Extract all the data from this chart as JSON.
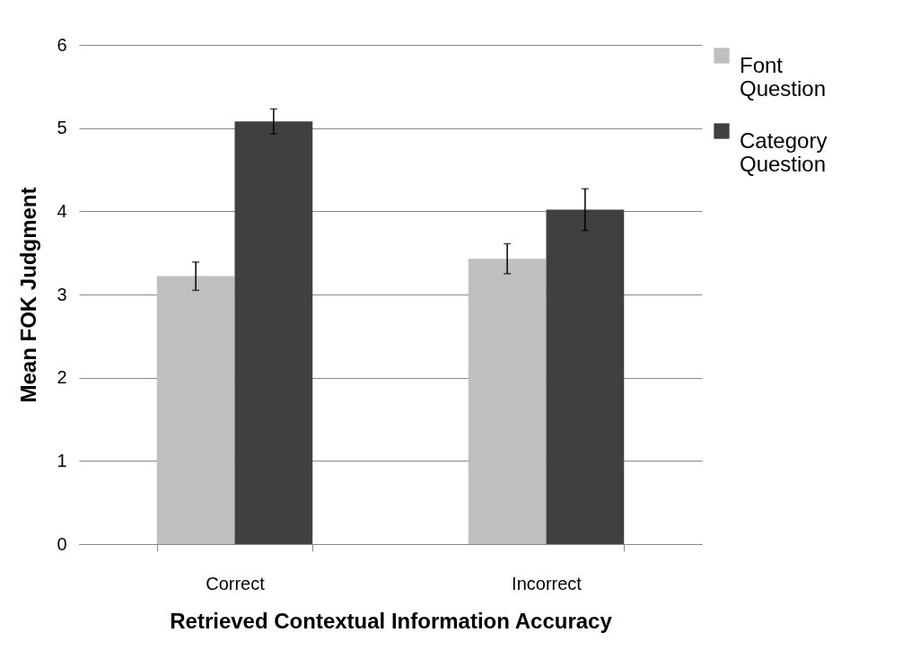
{
  "chart_data": {
    "type": "bar",
    "xlabel": "Retrieved Contextual Information Accuracy",
    "ylabel": "Mean FOK Judgment",
    "categories": [
      "Correct",
      "Incorrect"
    ],
    "series": [
      {
        "name": "Font Question",
        "color": "#bfbfbf",
        "values": [
          3.22,
          3.43
        ],
        "errors": [
          0.17,
          0.18
        ]
      },
      {
        "name": "Category Question",
        "color": "#404040",
        "values": [
          5.08,
          4.02
        ],
        "errors": [
          0.15,
          0.25
        ]
      }
    ],
    "ylim": [
      0,
      6
    ],
    "yticks": [
      0,
      1,
      2,
      3,
      4,
      5,
      6
    ],
    "grid": "y",
    "legend": "right"
  }
}
